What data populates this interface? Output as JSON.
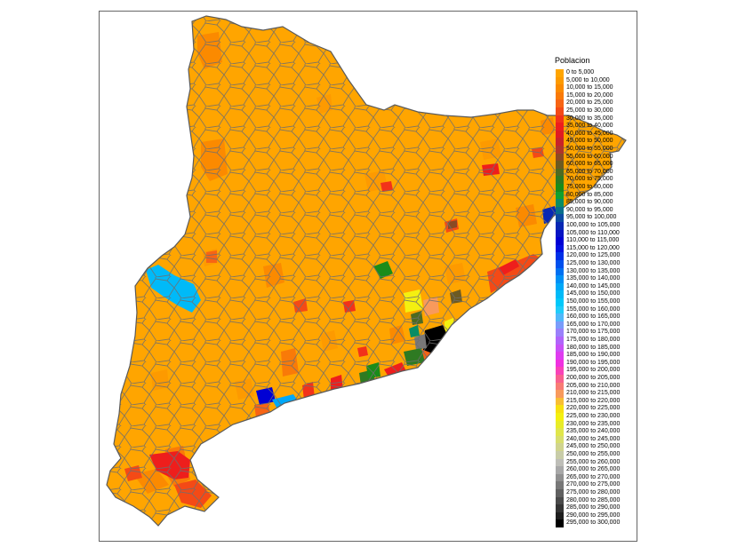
{
  "legend": {
    "title": "Poblacion",
    "classes": [
      {
        "label": "0 to 5,000",
        "color": "#ffa500"
      },
      {
        "label": "5,000 to 10,000",
        "color": "#fd9a00"
      },
      {
        "label": "10,000 to 15,000",
        "color": "#fb8a00"
      },
      {
        "label": "15,000 to 20,000",
        "color": "#f97a08"
      },
      {
        "label": "20,000 to 25,000",
        "color": "#f76414"
      },
      {
        "label": "25,000 to 30,000",
        "color": "#f44a16"
      },
      {
        "label": "30,000 to 35,000",
        "color": "#f2321a"
      },
      {
        "label": "35,000 to 40,000",
        "color": "#ee1e1c"
      },
      {
        "label": "40,000 to 45,000",
        "color": "#e01a22"
      },
      {
        "label": "45,000 to 50,000",
        "color": "#c8222a"
      },
      {
        "label": "50,000 to 55,000",
        "color": "#b0342a"
      },
      {
        "label": "55,000 to 60,000",
        "color": "#8a4a24"
      },
      {
        "label": "60,000 to 65,000",
        "color": "#6c5a22"
      },
      {
        "label": "65,000 to 70,000",
        "color": "#4e6a22"
      },
      {
        "label": "70,000 to 75,000",
        "color": "#2e7a22"
      },
      {
        "label": "75,000 to 80,000",
        "color": "#1a8c1a"
      },
      {
        "label": "80,000 to 85,000",
        "color": "#10a030"
      },
      {
        "label": "85,000 to 90,000",
        "color": "#0a8c64"
      },
      {
        "label": "90,000 to 95,000",
        "color": "#086e8c"
      },
      {
        "label": "95,000 to 100,000",
        "color": "#0a4aa4"
      },
      {
        "label": "100,000 to 105,000",
        "color": "#0828b4"
      },
      {
        "label": "105,000 to 110,000",
        "color": "#0614c4"
      },
      {
        "label": "110,000 to 115,000",
        "color": "#0000d4"
      },
      {
        "label": "115,000 to 120,000",
        "color": "#0010e0"
      },
      {
        "label": "120,000 to 125,000",
        "color": "#0030e8"
      },
      {
        "label": "125,000 to 130,000",
        "color": "#0050ee"
      },
      {
        "label": "130,000 to 135,000",
        "color": "#0070f2"
      },
      {
        "label": "135,000 to 140,000",
        "color": "#0090f6"
      },
      {
        "label": "140,000 to 145,000",
        "color": "#00a8f8"
      },
      {
        "label": "145,000 to 150,000",
        "color": "#00baf8"
      },
      {
        "label": "150,000 to 155,000",
        "color": "#00c8fa"
      },
      {
        "label": "155,000 to 160,000",
        "color": "#20ccfa"
      },
      {
        "label": "160,000 to 165,000",
        "color": "#50b8fa"
      },
      {
        "label": "165,000 to 170,000",
        "color": "#7a9cfa"
      },
      {
        "label": "170,000 to 175,000",
        "color": "#9a80fa"
      },
      {
        "label": "175,000 to 180,000",
        "color": "#b064fa"
      },
      {
        "label": "180,000 to 185,000",
        "color": "#c850f6"
      },
      {
        "label": "185,000 to 190,000",
        "color": "#de3cf0"
      },
      {
        "label": "190,000 to 195,000",
        "color": "#f030e0"
      },
      {
        "label": "195,000 to 200,000",
        "color": "#f842b8"
      },
      {
        "label": "200,000 to 205,000",
        "color": "#f8608e"
      },
      {
        "label": "205,000 to 210,000",
        "color": "#f87c74"
      },
      {
        "label": "210,000 to 215,000",
        "color": "#f89a5c"
      },
      {
        "label": "215,000 to 220,000",
        "color": "#f8be34"
      },
      {
        "label": "220,000 to 225,000",
        "color": "#f8e010"
      },
      {
        "label": "225,000 to 230,000",
        "color": "#f4f010"
      },
      {
        "label": "230,000 to 235,000",
        "color": "#e8ec28"
      },
      {
        "label": "235,000 to 240,000",
        "color": "#e0e64a"
      },
      {
        "label": "240,000 to 245,000",
        "color": "#d8de6e"
      },
      {
        "label": "245,000 to 250,000",
        "color": "#d0d48e"
      },
      {
        "label": "250,000 to 255,000",
        "color": "#c8cca8"
      },
      {
        "label": "255,000 to 260,000",
        "color": "#bebeb8"
      },
      {
        "label": "260,000 to 265,000",
        "color": "#a8a8a8"
      },
      {
        "label": "265,000 to 270,000",
        "color": "#909090"
      },
      {
        "label": "270,000 to 275,000",
        "color": "#787878"
      },
      {
        "label": "275,000 to 280,000",
        "color": "#606060"
      },
      {
        "label": "280,000 to 285,000",
        "color": "#4a4a4a"
      },
      {
        "label": "285,000 to 290,000",
        "color": "#343434"
      },
      {
        "label": "290,000 to 295,000",
        "color": "#1e1e1e"
      },
      {
        "label": "295,000 to 300,000",
        "color": "#000000"
      }
    ]
  }
}
